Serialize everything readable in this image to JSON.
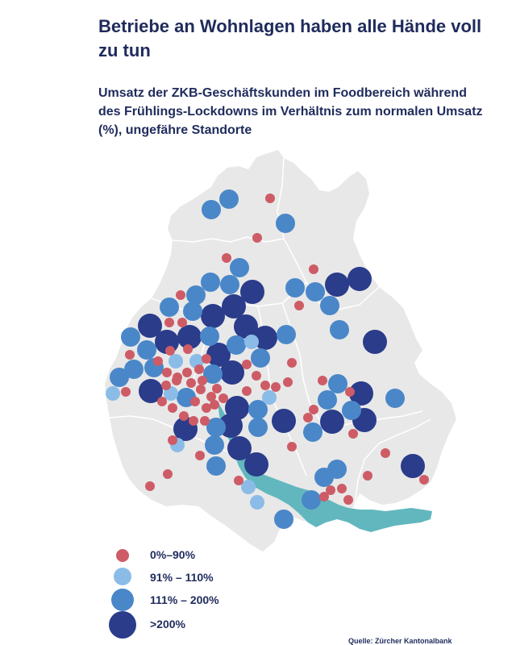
{
  "title": "Betriebe an Wohnlagen haben alle Hände voll zu tun",
  "subtitle": "Umsatz der ZKB-Geschäftskunden im Foodbereich während des Frühlings-Lockdowns im Verhältnis zum normalen Umsatz (%), ungefähre Standorte",
  "legend": [
    {
      "key": "red",
      "label": "0%–90%",
      "color": "#cd5c66"
    },
    {
      "key": "light",
      "label": "91% – 110%",
      "color": "#8bbce8"
    },
    {
      "key": "mid",
      "label": "111% – 200%",
      "color": "#4a87c8"
    },
    {
      "key": "dark",
      "label": ">200%",
      "color": "#2a3c8a"
    }
  ],
  "source": "Quelle: Zürcher Kantonalbank",
  "colors": {
    "land": "#e8e8e8",
    "lake": "#62b7bf",
    "text": "#1f2b5c"
  }
}
